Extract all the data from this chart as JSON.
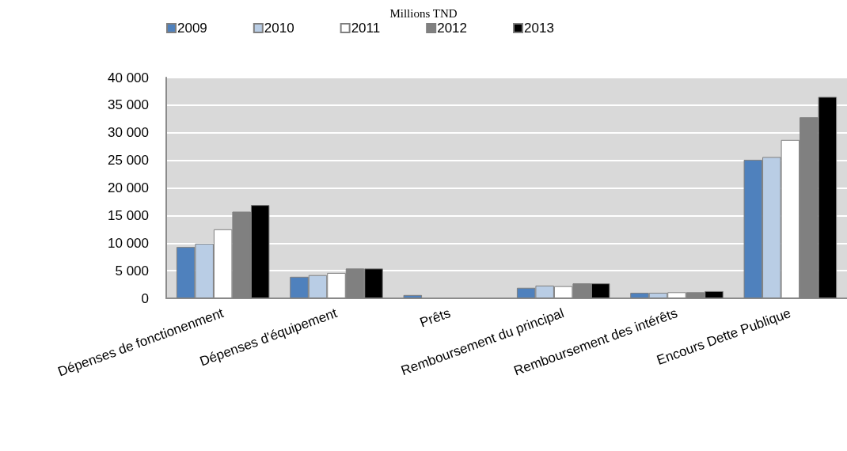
{
  "chart_data": {
    "type": "bar",
    "title": "Millions TND",
    "categories": [
      "Dépenses de fonctionenment",
      "Dépenses d'équipement",
      "Prêts",
      "Remboursement du principal",
      "Remboursement des intérêts",
      "Encours Dette Publique"
    ],
    "series": [
      {
        "name": "2009",
        "color": "#4f81bd",
        "values": [
          9300,
          3900,
          600,
          1900,
          1000,
          25100
        ]
      },
      {
        "name": "2010",
        "color": "#b9cde5",
        "values": [
          9900,
          4200,
          0,
          2300,
          1000,
          25600
        ]
      },
      {
        "name": "2011",
        "color": "#ffffff",
        "values": [
          12500,
          4600,
          0,
          2200,
          1100,
          28700
        ]
      },
      {
        "name": "2012",
        "color": "#808080",
        "values": [
          15700,
          5400,
          0,
          2700,
          1100,
          32800
        ]
      },
      {
        "name": "2013",
        "color": "#000000",
        "values": [
          16900,
          5400,
          0,
          2700,
          1300,
          36500
        ]
      }
    ],
    "ylim": [
      0,
      40000
    ],
    "yticks": [
      {
        "value": 0,
        "label": "0"
      },
      {
        "value": 5000,
        "label": "5 000"
      },
      {
        "value": 10000,
        "label": "10 000"
      },
      {
        "value": 15000,
        "label": "15 000"
      },
      {
        "value": 20000,
        "label": "20 000"
      },
      {
        "value": 25000,
        "label": "25 000"
      },
      {
        "value": 30000,
        "label": "30 000"
      },
      {
        "value": 35000,
        "label": "35 000"
      },
      {
        "value": 40000,
        "label": "40 000"
      }
    ],
    "grid": "y",
    "legend": "top"
  }
}
